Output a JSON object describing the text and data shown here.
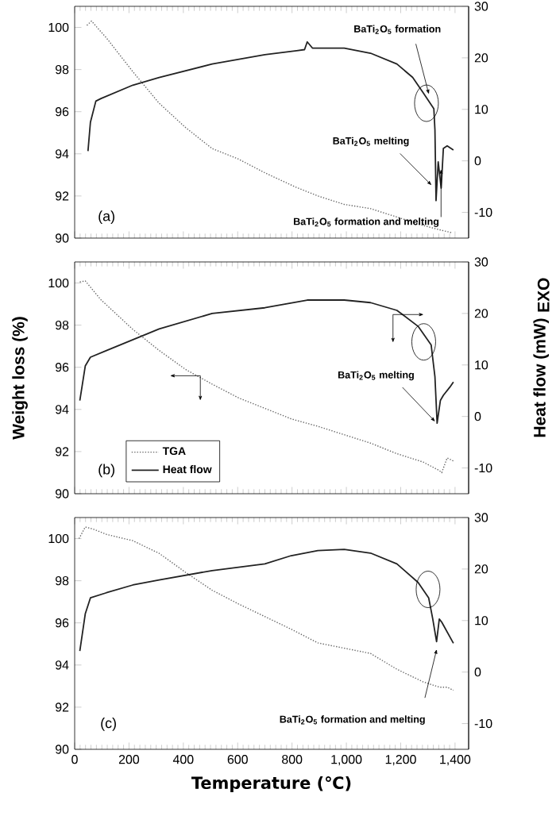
{
  "chart_data": [
    {
      "type": "line",
      "xlim": [
        0,
        1450
      ],
      "xticks": [
        {
          "value": 0,
          "label": null
        },
        {
          "value": 200,
          "label": null
        },
        {
          "value": 400,
          "label": null
        },
        {
          "value": 600,
          "label": null
        },
        {
          "value": 800,
          "label": null
        },
        {
          "value": 1000,
          "label": null
        },
        {
          "value": 1200,
          "label": null
        },
        {
          "value": 1400,
          "label": null
        }
      ],
      "ylim": [
        90,
        101
      ],
      "yticks": [
        90,
        92,
        94,
        96,
        98,
        100
      ],
      "y2lim": [
        -15,
        30
      ],
      "y2ticks": [
        -10,
        0,
        10,
        20,
        30
      ],
      "tick_labels": "y",
      "grid": false,
      "marker": "none",
      "annotations": [
        "(a)",
        "BaTi$_{2}$O$_{5}$ formation",
        "BaTi$_{2}$O$_{5}$ melting",
        "BaTi$_{2}$O$_{5}$ formation and melting"
      ],
      "series": [
        {
          "color": "#666666",
          "line_style": "dotted",
          "x": [
            45,
            62,
            117,
            214,
            311,
            408,
            506,
            603,
            700,
            817,
            895,
            992,
            1089,
            1186,
            1283,
            1342,
            1390
          ],
          "values": [
            100.1,
            100.3,
            99.5,
            97.9,
            96.4,
            95.25,
            94.25,
            93.75,
            93.1,
            92.4,
            92.0,
            91.6,
            91.4,
            91.0,
            90.6,
            90.4,
            90.25
          ]
        },
        {
          "color": "#222222",
          "line_style": "solid",
          "axis": "y2",
          "x": [
            49,
            58,
            78,
            97,
            214,
            311,
            506,
            700,
            817,
            846,
            856,
            875,
            992,
            1089,
            1186,
            1244,
            1283,
            1322,
            1326,
            1330,
            1338,
            1349,
            1357,
            1371,
            1394
          ],
          "values": [
            1.9,
            7.5,
            11.6,
            12.1,
            14.7,
            16.2,
            18.8,
            20.6,
            21.4,
            21.6,
            23.1,
            21.9,
            21.9,
            20.9,
            18.8,
            16.2,
            13.2,
            10.1,
            6.0,
            -7.7,
            -0.2,
            -5.3,
            2.4,
            2.9,
            2.1
          ]
        }
      ]
    },
    {
      "type": "line",
      "ylabel": "Weight loss (%)",
      "y2label": "Heat flow (mW)",
      "xlim": [
        0,
        1450
      ],
      "xticks": [
        {
          "value": 0,
          "label": null
        },
        {
          "value": 200,
          "label": null
        },
        {
          "value": 400,
          "label": null
        },
        {
          "value": 600,
          "label": null
        },
        {
          "value": 800,
          "label": null
        },
        {
          "value": 1000,
          "label": null
        },
        {
          "value": 1200,
          "label": null
        },
        {
          "value": 1400,
          "label": null
        }
      ],
      "ylim": [
        90,
        101
      ],
      "yticks": [
        90,
        92,
        94,
        96,
        98,
        100
      ],
      "y2lim": [
        -15,
        30
      ],
      "y2ticks": [
        -10,
        0,
        10,
        20,
        30
      ],
      "tick_labels": "y",
      "grid": false,
      "marker": "none",
      "legend": "bottom left",
      "annotations": [
        "(b)",
        "BaTi$_{2}$O$_{5}$ melting",
        "EXO"
      ],
      "series": [
        {
          "name": "TGA",
          "color": "#666666",
          "line_style": "dotted",
          "x": [
            19,
            39,
            97,
            214,
            311,
            408,
            506,
            603,
            700,
            797,
            895,
            992,
            1089,
            1186,
            1283,
            1342,
            1351,
            1371,
            1394
          ],
          "values": [
            100.05,
            100.1,
            99.2,
            97.8,
            96.8,
            95.9,
            95.2,
            94.55,
            94.05,
            93.55,
            93.2,
            92.8,
            92.4,
            91.9,
            91.5,
            91.1,
            91.0,
            91.7,
            91.55
          ]
        },
        {
          "name": "Heat flow",
          "color": "#222222",
          "line_style": "solid",
          "axis": "y2",
          "x": [
            19,
            39,
            58,
            117,
            214,
            311,
            506,
            700,
            856,
            992,
            1089,
            1186,
            1264,
            1312,
            1326,
            1334,
            1346,
            1357,
            1381,
            1394
          ],
          "values": [
            3.1,
            9.8,
            11.5,
            12.8,
            14.9,
            17.0,
            20.0,
            21.1,
            22.6,
            22.6,
            22.1,
            20.6,
            17.5,
            13.9,
            7.7,
            -1.3,
            3.1,
            4.1,
            5.7,
            6.7
          ]
        }
      ]
    },
    {
      "type": "line",
      "xlabel": "Temperature (℃)",
      "xlim": [
        0,
        1450
      ],
      "xticks": [
        0,
        200,
        400,
        600,
        800,
        {
          "value": 1000,
          "label": "1,000"
        },
        {
          "value": 1200,
          "label": "1,200"
        },
        {
          "value": 1400,
          "label": "1,400"
        }
      ],
      "ylim": [
        90,
        101
      ],
      "yticks": [
        90,
        92,
        94,
        96,
        98,
        100
      ],
      "y2lim": [
        -15,
        30
      ],
      "y2ticks": [
        -10,
        0,
        10,
        20,
        30
      ],
      "grid": false,
      "marker": "none",
      "annotations": [
        "(c)",
        "BaTi$_{2}$O$_{5}$ formation and melting"
      ],
      "series": [
        {
          "color": "#666666",
          "line_style": "dotted",
          "x": [
            16,
            39,
            68,
            117,
            214,
            311,
            408,
            506,
            603,
            700,
            797,
            895,
            992,
            1089,
            1186,
            1283,
            1342,
            1371,
            1394
          ],
          "values": [
            100.0,
            100.55,
            100.45,
            100.2,
            99.9,
            99.3,
            98.4,
            97.55,
            96.9,
            96.3,
            95.7,
            95.05,
            94.8,
            94.55,
            93.8,
            93.2,
            92.95,
            92.95,
            92.8
          ]
        },
        {
          "color": "#222222",
          "line_style": "solid",
          "axis": "y2",
          "x": [
            19,
            39,
            58,
            117,
            214,
            311,
            506,
            700,
            797,
            895,
            992,
            1089,
            1186,
            1264,
            1303,
            1318,
            1332,
            1342,
            1351,
            1394
          ],
          "values": [
            4.1,
            11.3,
            14.4,
            15.4,
            16.9,
            17.9,
            19.7,
            21.0,
            22.6,
            23.6,
            23.8,
            23.1,
            21.0,
            17.4,
            14.4,
            10.3,
            5.9,
            10.3,
            9.7,
            5.6
          ]
        }
      ]
    }
  ]
}
